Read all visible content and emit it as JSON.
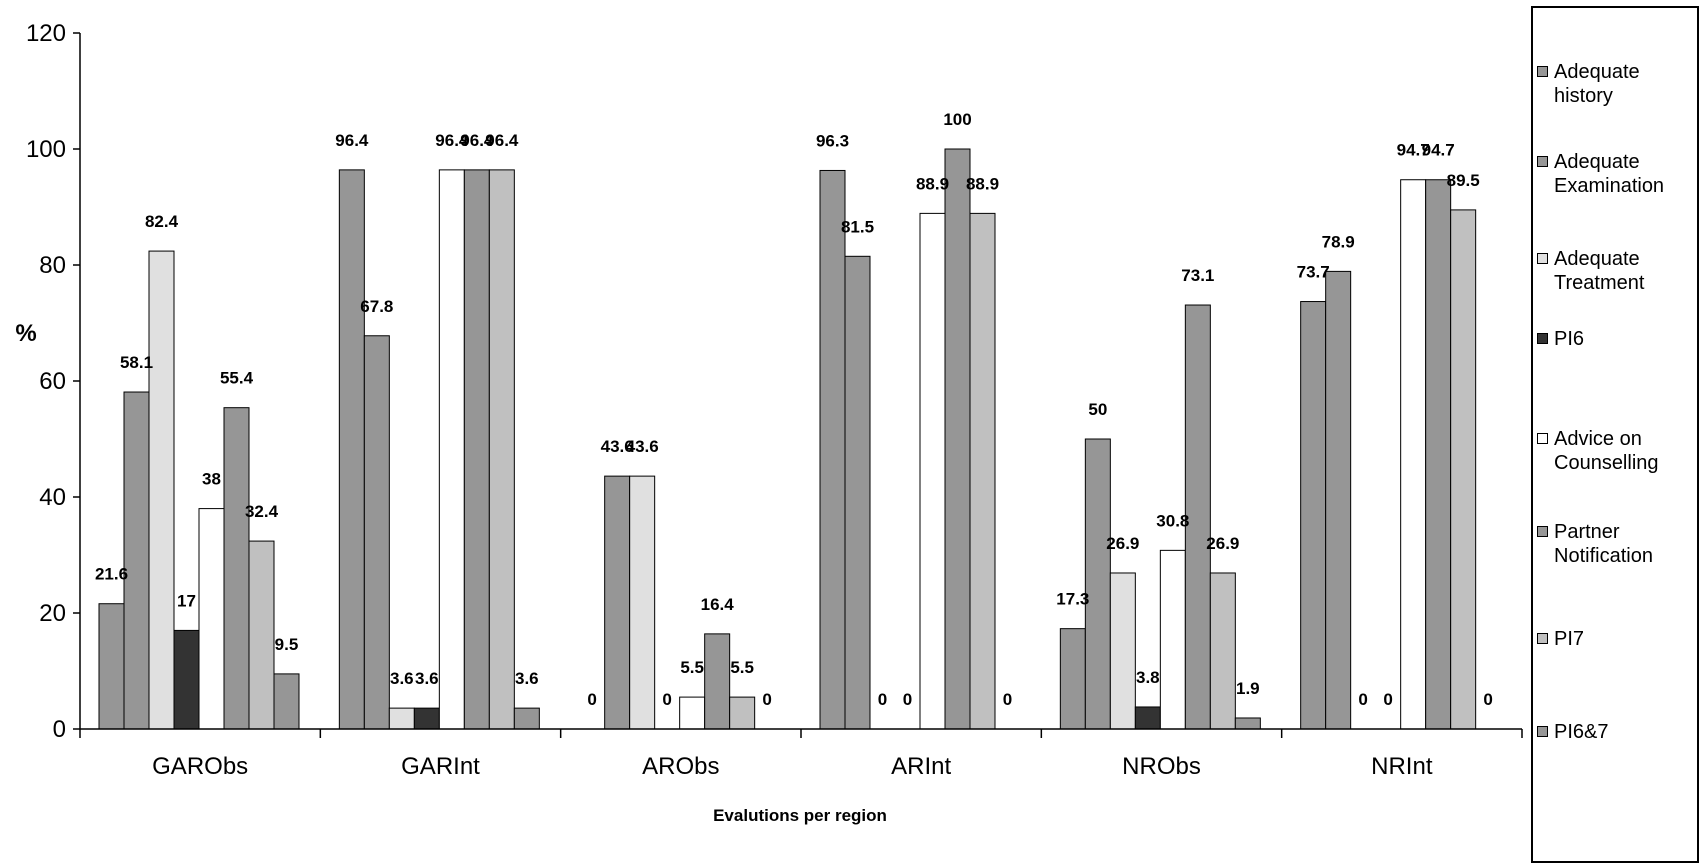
{
  "chart_data": {
    "type": "bar",
    "categories": [
      "GARObs",
      "GARInt",
      "ARObs",
      "ARInt",
      "NRObs",
      "NRInt"
    ],
    "xlabel": "Evalutions per region",
    "ylabel": "%",
    "ylim": [
      0,
      120
    ],
    "yticks": [
      "0",
      "20",
      "40",
      "60",
      "80",
      "100",
      "120"
    ],
    "grid": false,
    "legend_position": "right",
    "series": [
      {
        "name": "Adequate history",
        "color": "#969696",
        "values": [
          21.6,
          96.4,
          0,
          96.3,
          17.3,
          73.7
        ],
        "labels": [
          "21.6",
          "96.4",
          "0",
          "96.3",
          "17.3",
          "73.7"
        ]
      },
      {
        "name": "Adequate Examination",
        "color": "#969696",
        "values": [
          58.1,
          67.8,
          43.6,
          81.5,
          50,
          78.9
        ],
        "labels": [
          "58.1",
          "67.8",
          "43.6",
          "81.5",
          "50",
          "78.9"
        ]
      },
      {
        "name": "Adequate Treatment",
        "color": "#e0e0e0",
        "values": [
          82.4,
          3.6,
          43.6,
          0,
          26.9,
          0
        ],
        "labels": [
          "82.4",
          "3.6",
          "43.6",
          "0",
          "26.9",
          "0"
        ]
      },
      {
        "name": "PI6",
        "color": "#333333",
        "values": [
          17,
          3.6,
          0,
          0,
          3.8,
          0
        ],
        "labels": [
          "17",
          "3.6",
          "0",
          "0",
          "3.8",
          "0"
        ]
      },
      {
        "name": "Advice on Counselling",
        "color": "#ffffff",
        "values": [
          38,
          96.4,
          5.5,
          88.9,
          30.8,
          94.7
        ],
        "labels": [
          "38",
          "96.4",
          "5.5",
          "88.9",
          "30.8",
          "94.7"
        ]
      },
      {
        "name": "Partner Notification",
        "color": "#969696",
        "values": [
          55.4,
          96.4,
          16.4,
          100,
          73.1,
          94.7
        ],
        "labels": [
          "55.4",
          "96.4",
          "16.4",
          "100",
          "73.1",
          "94.7"
        ]
      },
      {
        "name": "PI7",
        "color": "#c0c0c0",
        "values": [
          32.4,
          96.4,
          5.5,
          88.9,
          26.9,
          89.5
        ],
        "labels": [
          "32.4",
          "96.4",
          "5.5",
          "88.9",
          "26.9",
          "89.5"
        ]
      },
      {
        "name": "PI6&7",
        "color": "#969696",
        "values": [
          9.5,
          3.6,
          0,
          0,
          1.9,
          0
        ],
        "labels": [
          "9.5",
          "3.6",
          "0",
          "0",
          "1.9",
          "0"
        ]
      }
    ]
  }
}
